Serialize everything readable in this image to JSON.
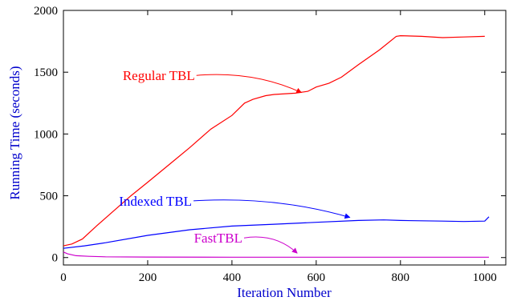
{
  "chart_data": {
    "type": "line",
    "title": "",
    "xlabel": "Iteration Number",
    "ylabel": "Running Time (seconds)",
    "xlim": [
      0,
      1050
    ],
    "ylim": [
      -60,
      2000
    ],
    "xticks": [
      0,
      200,
      400,
      600,
      800,
      1000
    ],
    "yticks": [
      0,
      500,
      1000,
      1500,
      2000
    ],
    "grid": false,
    "legend": "none (inline labels with arrows)",
    "series": [
      {
        "name": "Regular TBL",
        "color": "#ff0000",
        "x": [
          0,
          20,
          45,
          80,
          120,
          160,
          200,
          250,
          300,
          350,
          400,
          430,
          450,
          480,
          500,
          550,
          580,
          600,
          630,
          660,
          700,
          750,
          790,
          800,
          850,
          900,
          950,
          1000
        ],
        "y": [
          95,
          110,
          150,
          260,
          380,
          500,
          610,
          750,
          890,
          1040,
          1150,
          1250,
          1280,
          1310,
          1320,
          1330,
          1345,
          1380,
          1410,
          1460,
          1560,
          1680,
          1790,
          1795,
          1790,
          1780,
          1785,
          1790
        ]
      },
      {
        "name": "Indexed TBL",
        "color": "#0000ff",
        "x": [
          0,
          50,
          100,
          200,
          300,
          400,
          500,
          600,
          700,
          760,
          800,
          900,
          950,
          1000,
          1010
        ],
        "y": [
          75,
          95,
          120,
          180,
          225,
          255,
          270,
          285,
          300,
          305,
          300,
          295,
          292,
          295,
          330
        ]
      },
      {
        "name": "FastTBL",
        "color": "#cc00cc",
        "x": [
          0,
          10,
          30,
          60,
          100,
          200,
          400,
          600,
          800,
          1000,
          1010
        ],
        "y": [
          45,
          30,
          15,
          10,
          6,
          4,
          3,
          3,
          3,
          3,
          3
        ]
      }
    ],
    "annotations": [
      {
        "text": "Regular TBL",
        "color": "#ff0000",
        "x": 312,
        "y": 1435,
        "arrow_to": [
          565,
          1335
        ]
      },
      {
        "text": "Indexed TBL",
        "color": "#0000ff",
        "x": 305,
        "y": 420,
        "arrow_to": [
          680,
          325
        ]
      },
      {
        "text": "FastTBL",
        "color": "#cc00cc",
        "x": 425,
        "y": 120,
        "arrow_to": [
          555,
          35
        ]
      }
    ]
  }
}
